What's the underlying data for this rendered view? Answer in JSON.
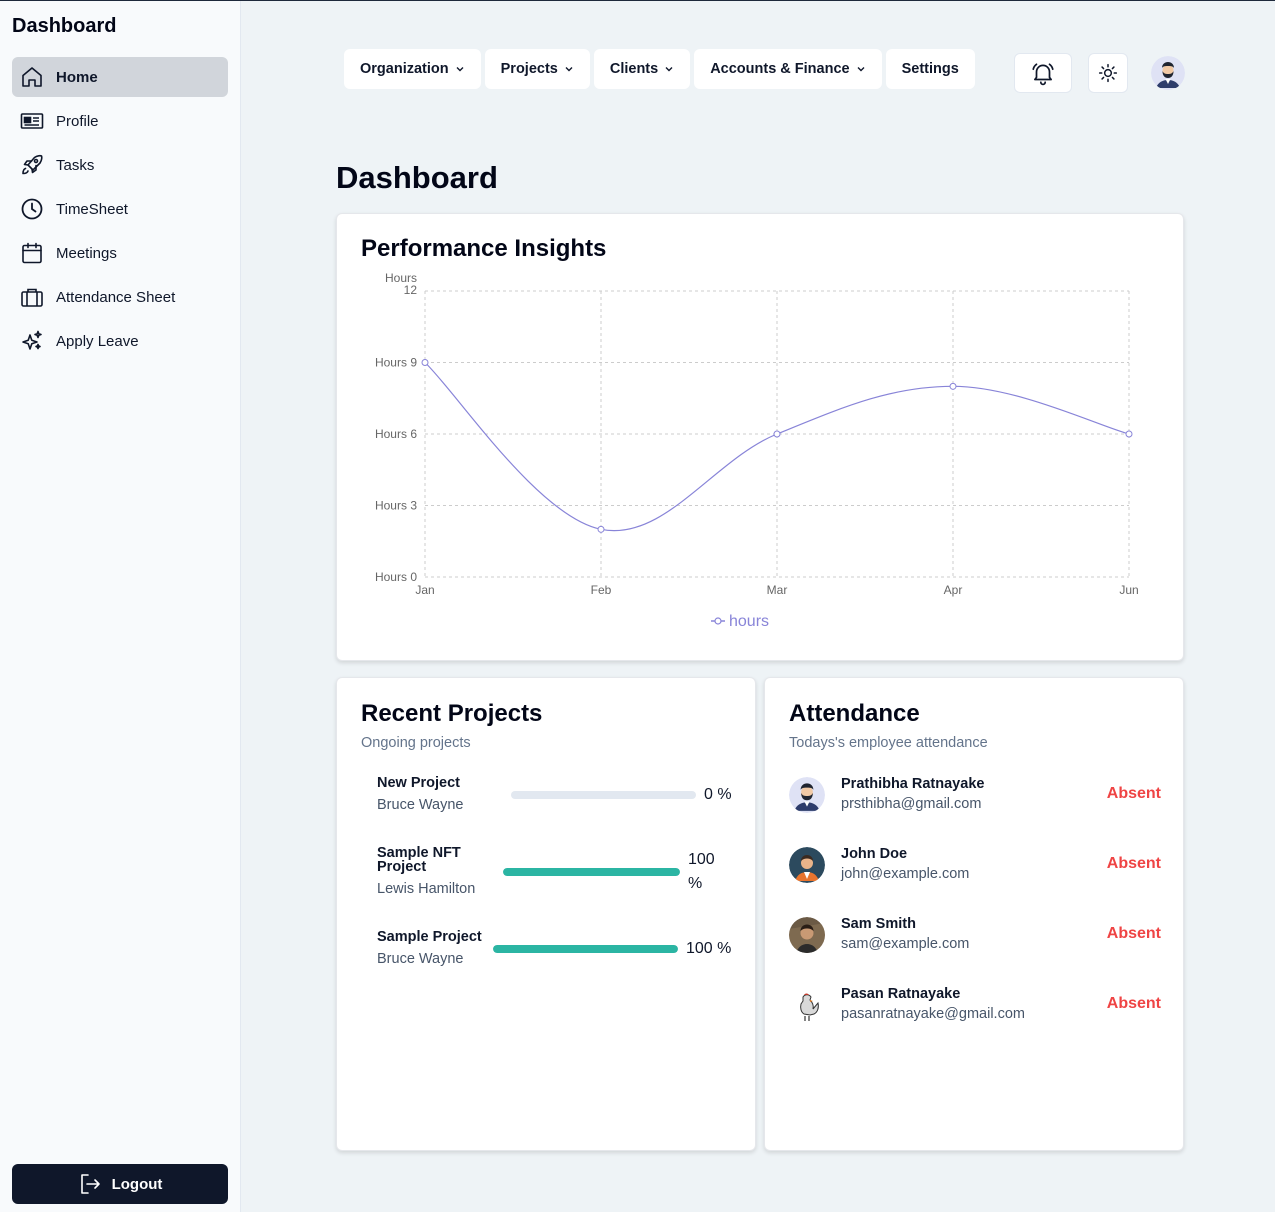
{
  "sidebar": {
    "title": "Dashboard",
    "items": [
      {
        "label": "Home",
        "icon": "home-icon"
      },
      {
        "label": "Profile",
        "icon": "id-card-icon"
      },
      {
        "label": "Tasks",
        "icon": "rocket-icon"
      },
      {
        "label": "TimeSheet",
        "icon": "clock-icon"
      },
      {
        "label": "Meetings",
        "icon": "calendar-icon"
      },
      {
        "label": "Attendance Sheet",
        "icon": "briefcase-icon"
      },
      {
        "label": "Apply Leave",
        "icon": "sparkles-icon"
      }
    ],
    "logout_label": "Logout"
  },
  "topnav": {
    "items": [
      "Organization",
      "Projects",
      "Clients",
      "Accounts & Finance",
      "Settings"
    ]
  },
  "header": {
    "title": "Dashboard"
  },
  "performance": {
    "title": "Performance Insights"
  },
  "chart_data": {
    "type": "line",
    "title": "Performance Insights",
    "categories": [
      "Jan",
      "Feb",
      "Mar",
      "Apr",
      "Jun"
    ],
    "series": [
      {
        "name": "hours",
        "values": [
          9,
          2,
          6,
          8,
          6
        ]
      }
    ],
    "yticks": [
      "Hours 0",
      "Hours 3",
      "Hours 6",
      "Hours 9",
      "Hours 12"
    ],
    "ylim": [
      0,
      12
    ],
    "grid": true,
    "legend": "bottom",
    "color": "#8884d8"
  },
  "projects": {
    "title": "Recent Projects",
    "subtitle": "Ongoing projects",
    "items": [
      {
        "name": "New Project",
        "owner": "Bruce Wayne",
        "progress": 0,
        "label": "0 %"
      },
      {
        "name": "Sample NFT Project",
        "owner": "Lewis Hamilton",
        "progress": 100,
        "label": "100 %"
      },
      {
        "name": "Sample Project",
        "owner": "Bruce Wayne",
        "progress": 100,
        "label": "100 %"
      }
    ],
    "bar_color": "#2bb5a3"
  },
  "attendance": {
    "title": "Attendance",
    "subtitle": "Todays's employee attendance",
    "items": [
      {
        "name": "Prathibha Ratnayake",
        "email": "prsthibha@gmail.com",
        "status": "Absent"
      },
      {
        "name": "John Doe",
        "email": "john@example.com",
        "status": "Absent"
      },
      {
        "name": "Sam Smith",
        "email": "sam@example.com",
        "status": "Absent"
      },
      {
        "name": "Pasan Ratnayake",
        "email": "pasanratnayake@gmail.com",
        "status": "Absent"
      }
    ],
    "status_color": "#ef4444"
  }
}
